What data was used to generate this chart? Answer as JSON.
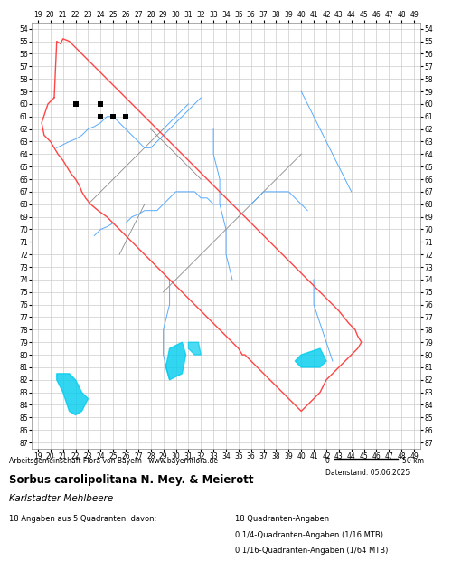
{
  "title_bold": "Sorbus carolipolitana N. Mey. & Meierott",
  "title_italic": "Karlstadter Mehlbeere",
  "subtitle": "Arbeitsgemeinschaft Flora von Bayern - www.bayernflora.de",
  "date_text": "Datenstand: 05.06.2025",
  "scale_text": "0          50 km",
  "stats_line1": "18 Angaben aus 5 Quadranten, davon:",
  "stats_right1": "18 Quadranten-Angaben",
  "stats_right2": "0 1/4-Quadranten-Angaben (1/16 MTB)",
  "stats_right3": "0 1/16-Quadranten-Angaben (1/64 MTB)",
  "x_min": 19,
  "x_max": 49,
  "y_min": 54,
  "y_max": 87,
  "x_ticks": [
    19,
    20,
    21,
    22,
    23,
    24,
    25,
    26,
    27,
    28,
    29,
    30,
    31,
    32,
    33,
    34,
    35,
    36,
    37,
    38,
    39,
    40,
    41,
    42,
    43,
    44,
    45,
    46,
    47,
    48,
    49
  ],
  "y_ticks": [
    54,
    55,
    56,
    57,
    58,
    59,
    60,
    61,
    62,
    63,
    64,
    65,
    66,
    67,
    68,
    69,
    70,
    71,
    72,
    73,
    74,
    75,
    76,
    77,
    78,
    79,
    80,
    81,
    82,
    83,
    84,
    85,
    86,
    87
  ],
  "grid_color": "#cccccc",
  "bg_color": "#ffffff",
  "outer_border_color": "#ff4444",
  "inner_border_color": "#888888",
  "river_color": "#55aaff",
  "lake_color": "#00ccee",
  "marker_color": "#000000",
  "marker_size": 5,
  "occurrence_points": [
    [
      22,
      60
    ],
    [
      24,
      60
    ],
    [
      24,
      61
    ],
    [
      25,
      61
    ],
    [
      26,
      61
    ]
  ]
}
